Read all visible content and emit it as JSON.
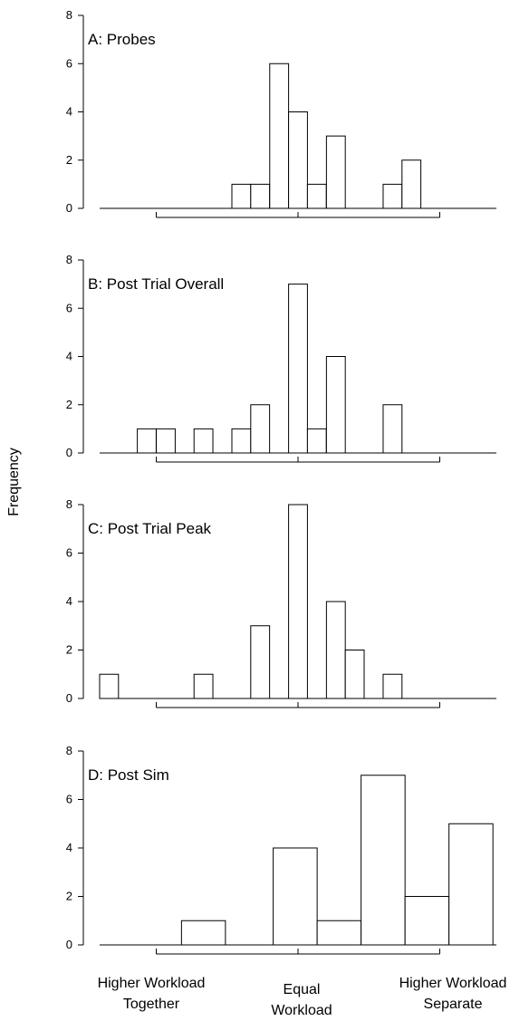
{
  "chart_data": {
    "type": "bar",
    "ylabel": "Frequency",
    "ylim": [
      0,
      8
    ],
    "yticks": [
      0,
      2,
      4,
      6,
      8
    ],
    "x_category_labels": [
      [
        "Higher Workload",
        "Together"
      ],
      [
        "Equal",
        "Workload"
      ],
      [
        "Higher Workload",
        "Separate"
      ]
    ],
    "xlim": [
      -2.05,
      1.38
    ],
    "x_ref_ticks": [
      -1,
      0,
      1
    ],
    "panels": [
      {
        "title": "A: Probes",
        "bin_width": 0.133,
        "bars": [
          {
            "center": -0.4,
            "value": 1
          },
          {
            "center": -0.267,
            "value": 1
          },
          {
            "center": -0.133,
            "value": 6
          },
          {
            "center": 0.0,
            "value": 4
          },
          {
            "center": 0.133,
            "value": 1
          },
          {
            "center": 0.267,
            "value": 3
          },
          {
            "center": 0.667,
            "value": 1
          },
          {
            "center": 0.8,
            "value": 2
          }
        ]
      },
      {
        "title": "B: Post Trial Overall",
        "bin_width": 0.133,
        "bars": [
          {
            "center": -1.067,
            "value": 1
          },
          {
            "center": -0.933,
            "value": 1
          },
          {
            "center": -0.667,
            "value": 1
          },
          {
            "center": -0.4,
            "value": 1
          },
          {
            "center": -0.267,
            "value": 2
          },
          {
            "center": 0.0,
            "value": 7
          },
          {
            "center": 0.133,
            "value": 1
          },
          {
            "center": 0.267,
            "value": 4
          },
          {
            "center": 0.667,
            "value": 2
          }
        ]
      },
      {
        "title": "C: Post Trial Peak",
        "bin_width": 0.133,
        "bars": [
          {
            "center": -1.333,
            "value": 1
          },
          {
            "center": -0.667,
            "value": 1
          },
          {
            "center": -0.267,
            "value": 3
          },
          {
            "center": 0.0,
            "value": 8
          },
          {
            "center": 0.267,
            "value": 4
          },
          {
            "center": 0.4,
            "value": 2
          },
          {
            "center": 0.667,
            "value": 1
          }
        ]
      },
      {
        "title": "D: Post Sim",
        "bin_width": 0.31,
        "bars": [
          {
            "center": -0.667,
            "value": 1
          },
          {
            "center": -0.02,
            "value": 4
          },
          {
            "center": 0.29,
            "value": 1
          },
          {
            "center": 0.6,
            "value": 7
          },
          {
            "center": 0.91,
            "value": 2
          },
          {
            "center": 1.22,
            "value": 5
          }
        ]
      }
    ]
  }
}
